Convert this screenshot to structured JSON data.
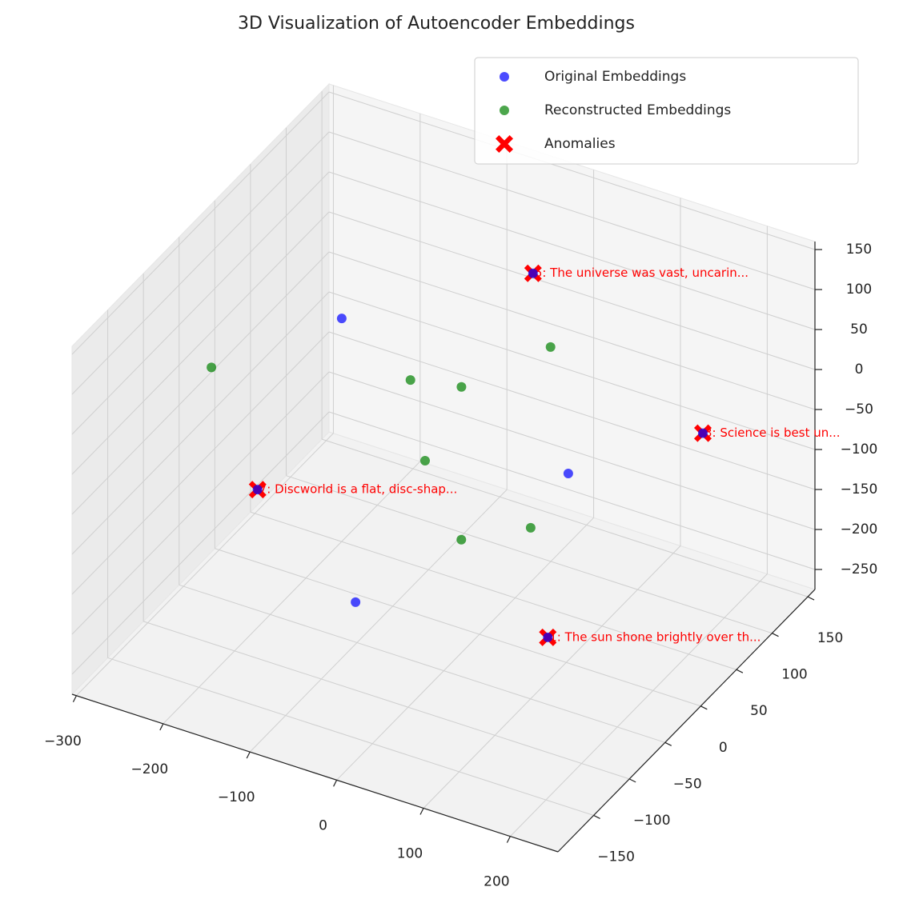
{
  "chart_data": {
    "type": "scatter3d",
    "title": "3D Visualization of Autoencoder Embeddings",
    "xlim": [
      -305,
      255
    ],
    "ylim": [
      -200,
      160
    ],
    "zlim": [
      -275,
      160
    ],
    "xticks": [
      {
        "value": -300,
        "label": "−300"
      },
      {
        "value": -200,
        "label": "−200"
      },
      {
        "value": -100,
        "label": "−100"
      },
      0,
      100,
      200
    ],
    "yticks": [
      {
        "value": -150,
        "label": "−150"
      },
      {
        "value": -100,
        "label": "−100"
      },
      {
        "value": -50,
        "label": "−50"
      },
      0,
      50,
      100,
      150
    ],
    "zticks": [
      {
        "value": -250,
        "label": "−250"
      },
      {
        "value": -200,
        "label": "−200"
      },
      {
        "value": -150,
        "label": "−150"
      },
      {
        "value": -100,
        "label": "−100"
      },
      {
        "value": -50,
        "label": "−50"
      },
      0,
      50,
      100,
      150
    ],
    "grid": true,
    "legend": "upper right",
    "series": [
      {
        "name": "Original Embeddings",
        "color": "#0000ff",
        "marker": "o",
        "x": [
          -241,
          -37,
          241,
          53,
          -157,
          -77,
          161
        ],
        "y": [
          100,
          120,
          20,
          60,
          -120,
          -80,
          -100
        ],
        "z": [
          -56,
          54,
          43,
          -110,
          -40,
          -189,
          -131
        ]
      },
      {
        "name": "Reconstructed Embeddings",
        "color": "#008000",
        "marker": "o",
        "x": [
          -276,
          -96,
          -29,
          49,
          -38,
          59,
          12
        ],
        "y": [
          -40,
          20,
          10,
          40,
          -30,
          0,
          -40
        ],
        "z": [
          -2,
          -9,
          15,
          65,
          -44,
          -121,
          -116
        ]
      },
      {
        "name": "Anomalies",
        "color": "#ff0000",
        "marker": "X",
        "x": [
          161,
          241,
          -37,
          -157
        ],
        "y": [
          -100,
          20,
          120,
          -120
        ],
        "z": [
          -131,
          43,
          54,
          -40
        ],
        "labels": [
          "1: The sun shone brightly over th...",
          "3: Science is best un...",
          "5: The universe was vast, uncarin...",
          "7: Discworld is a flat, disc-shap..."
        ]
      }
    ]
  }
}
